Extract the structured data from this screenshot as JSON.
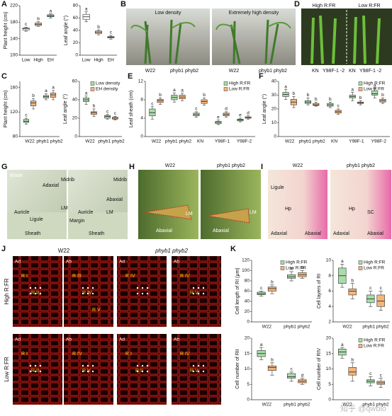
{
  "panels": [
    "A",
    "B",
    "C",
    "D",
    "E",
    "F",
    "G",
    "H",
    "I",
    "J",
    "K"
  ],
  "chart_data": [
    {
      "type": "box",
      "ylabel": "Plant height (cm)",
      "categories": [
        "Low",
        "High",
        "EH"
      ],
      "ylim": [
        100,
        220
      ],
      "yticks": [
        100,
        140,
        180,
        220
      ],
      "series": [
        {
          "colors": [
            "#ffffff",
            "#f5c79a",
            "#9ed9a0"
          ],
          "boxes": [
            [
              158,
              161,
              164,
              166,
              168
            ],
            [
              170,
              172,
              175,
              178,
              181
            ],
            [
              190,
              193,
              195,
              198,
              200
            ]
          ],
          "letters": [
            "c",
            "b",
            "a"
          ]
        }
      ]
    },
    {
      "type": "box",
      "ylabel": "Leaf angle (°)",
      "categories": [
        "Low",
        "High",
        "EH"
      ],
      "ylim": [
        0,
        80
      ],
      "yticks": [
        0,
        20,
        40,
        60,
        80
      ],
      "series": [
        {
          "colors": [
            "#ffffff",
            "#f5c79a",
            "#9ed9a0"
          ],
          "boxes": [
            [
              54,
              58,
              62,
              66,
              70
            ],
            [
              33,
              35,
              37,
              39,
              41
            ],
            [
              26,
              28,
              29,
              30,
              32
            ]
          ],
          "letters": [
            "a",
            "b",
            "c"
          ]
        }
      ]
    },
    {
      "type": "box",
      "ylabel": "Plant height (cm)",
      "categories": [
        "W22",
        "phyb1 phyb2"
      ],
      "ylim": [
        80,
        170
      ],
      "yticks": [
        80,
        120,
        160
      ],
      "series": [
        {
          "name": "Low density",
          "color": "#a8dca8",
          "boxes": [
            [
              100,
              103,
              105,
              108,
              110
            ],
            [
              140,
              143,
              145,
              147,
              150
            ]
          ],
          "letters": [
            "c",
            "a"
          ]
        },
        {
          "name": "EH density",
          "color": "#f5b57a",
          "boxes": [
            [
              125,
              130,
              135,
              138,
              142
            ],
            [
              140,
              144,
              148,
              151,
              155
            ]
          ],
          "letters": [
            "b",
            "a"
          ]
        }
      ]
    },
    {
      "type": "box",
      "ylabel": "Leaf angle (°)",
      "categories": [
        "W22",
        "phyb1 phyb2"
      ],
      "ylim": [
        0,
        60
      ],
      "yticks": [
        0,
        20,
        40,
        60
      ],
      "legend": true,
      "series": [
        {
          "name": "Low density",
          "color": "#a8dca8",
          "boxes": [
            [
              35,
              38,
              40,
              42,
              44
            ],
            [
              19,
              20,
              22,
              23,
              24
            ]
          ],
          "letters": [
            "a",
            "c"
          ]
        },
        {
          "name": "EH density",
          "color": "#f5b57a",
          "boxes": [
            [
              22,
              24,
              26,
              27,
              30
            ],
            [
              18,
              19,
              20,
              21,
              22
            ]
          ],
          "letters": [
            "b",
            "c"
          ]
        }
      ]
    },
    {
      "type": "box",
      "ylabel": "Leaf sheath (cm)",
      "categories": [
        "W22",
        "phyb1 phyb2",
        "KN",
        "Y98F-1",
        "Y98F-2"
      ],
      "ylim": [
        0,
        12
      ],
      "yticks": [
        0,
        4,
        8,
        12
      ],
      "legend": true,
      "series": [
        {
          "name": "High R:FR",
          "color": "#a8dca8",
          "boxes": [
            [
              3.8,
              4.5,
              5.2,
              6,
              6.5
            ],
            [
              7.5,
              8,
              8.5,
              9,
              9.5
            ],
            [
              4.2,
              4.5,
              4.8,
              5.1,
              5.4
            ],
            [
              2.6,
              2.8,
              3.1,
              3.3,
              3.6
            ],
            [
              3.2,
              3.4,
              3.6,
              3.8,
              4
            ]
          ],
          "letters": [
            "c",
            "a",
            "c",
            "e",
            "e"
          ]
        },
        {
          "name": "Low R:FR",
          "color": "#f5b57a",
          "boxes": [
            [
              7,
              7.4,
              7.8,
              8.1,
              8.4
            ],
            [
              7.8,
              8.2,
              8.6,
              9,
              9.4
            ],
            [
              6.8,
              7.2,
              7.6,
              8,
              8.4
            ],
            [
              4.2,
              4.5,
              4.8,
              5.1,
              5.4
            ],
            [
              3.8,
              4,
              4.1,
              4.3,
              4.5
            ]
          ],
          "letters": [
            "b",
            "a",
            "b",
            "d",
            "d"
          ]
        }
      ]
    },
    {
      "type": "box",
      "ylabel": "Leaf angle (°)",
      "categories": [
        "W22",
        "phyb1 phyb2",
        "KN",
        "Y98F-1",
        "Y98F-2"
      ],
      "ylim": [
        0,
        40
      ],
      "yticks": [
        0,
        10,
        20,
        30,
        40
      ],
      "legend": true,
      "series": [
        {
          "name": "High R:FR",
          "color": "#a8dca8",
          "boxes": [
            [
              27,
              29,
              30.5,
              32,
              34
            ],
            [
              23,
              24,
              25,
              26,
              28
            ],
            [
              21,
              22,
              23,
              24,
              25
            ],
            [
              26,
              28,
              29,
              30,
              32
            ],
            [
              28,
              30,
              31,
              33,
              35
            ]
          ],
          "letters": [
            "a",
            "b",
            "b",
            "a",
            "a"
          ]
        },
        {
          "name": "Low R:FR",
          "color": "#f5b57a",
          "boxes": [
            [
              21,
              23,
              25,
              27,
              29
            ],
            [
              22,
              22.5,
              23,
              24,
              25
            ],
            [
              16,
              17,
              18,
              19,
              20
            ],
            [
              23,
              24,
              24.5,
              25,
              26
            ],
            [
              24,
              25,
              26,
              27,
              28
            ]
          ],
          "letters": [
            "b",
            "b",
            "c",
            "b",
            "b"
          ]
        }
      ]
    },
    {
      "type": "box",
      "ylabel": "Cell length of RI (μm)",
      "categories": [
        "W22",
        "phyb1 phyb2"
      ],
      "ylim": [
        0,
        120
      ],
      "yticks": [
        0,
        20,
        40,
        60,
        80,
        100,
        120
      ],
      "legend": true,
      "series": [
        {
          "name": "High R:FR",
          "color": "#a8dca8",
          "boxes": [
            [
              50,
              53,
              55,
              58,
              60
            ],
            [
              80,
              85,
              88,
              92,
              98
            ]
          ],
          "letters": [
            "c",
            "a"
          ]
        },
        {
          "name": "Low R:FR",
          "color": "#f5b57a",
          "boxes": [
            [
              55,
              60,
              65,
              68,
              72
            ],
            [
              85,
              88,
              92,
              96,
              100
            ]
          ],
          "letters": [
            "b",
            "a"
          ]
        }
      ]
    },
    {
      "type": "box",
      "ylabel": "Cell layers of RI",
      "categories": [
        "W22",
        "phyb1 phyb2"
      ],
      "ylim": [
        2,
        10
      ],
      "yticks": [
        2,
        4,
        6,
        8,
        10
      ],
      "legend": true,
      "series": [
        {
          "name": "High R:FR",
          "color": "#a8dca8",
          "boxes": [
            [
              6.5,
              7,
              8,
              9,
              9.5
            ],
            [
              4,
              4.5,
              5,
              5.5,
              6
            ]
          ],
          "letters": [
            "a",
            "c"
          ]
        },
        {
          "name": "Low R:FR",
          "color": "#f5b57a",
          "boxes": [
            [
              5,
              5.5,
              6,
              6.3,
              7
            ],
            [
              3.5,
              4,
              4.7,
              5.5,
              6
            ]
          ],
          "letters": [
            "b",
            "c"
          ]
        }
      ]
    },
    {
      "type": "box",
      "ylabel": "Cell number of RII",
      "categories": [
        "W22",
        "phyb1 phyb2"
      ],
      "ylim": [
        0,
        20
      ],
      "yticks": [
        0,
        5,
        10,
        15,
        20
      ],
      "series": [
        {
          "name": "High R:FR",
          "color": "#a8dca8",
          "boxes": [
            [
              13,
              14,
              15,
              16,
              17
            ],
            [
              6,
              7,
              7.5,
              8.5,
              9
            ]
          ],
          "letters": [
            "a",
            "c"
          ]
        },
        {
          "name": "Low R:FR",
          "color": "#f5b57a",
          "boxes": [
            [
              8,
              9.5,
              10.5,
              11,
              12
            ],
            [
              5,
              5.5,
              6,
              6.5,
              7
            ]
          ],
          "letters": [
            "b",
            "d"
          ]
        }
      ]
    },
    {
      "type": "box",
      "ylabel": "Cell number of RIV",
      "categories": [
        "W22",
        "phyb1 phyb2"
      ],
      "ylim": [
        0,
        20
      ],
      "yticks": [
        0,
        5,
        10,
        15,
        20
      ],
      "legend": true,
      "series": [
        {
          "name": "High R:FR",
          "color": "#a8dca8",
          "boxes": [
            [
              13.5,
              14.5,
              15.5,
              16.5,
              17
            ],
            [
              4.5,
              5.5,
              6,
              6.5,
              7.5
            ]
          ],
          "letters": [
            "a",
            "c"
          ]
        },
        {
          "name": "Low R:FR",
          "color": "#f5b57a",
          "boxes": [
            [
              6,
              8,
              9,
              10.5,
              12
            ],
            [
              4,
              5,
              5.5,
              6,
              7
            ]
          ],
          "letters": [
            "b",
            "c"
          ]
        }
      ]
    }
  ],
  "photos": {
    "B": [
      "Low density",
      "Extremely high density",
      "W22",
      "phyb1 phyb2",
      "W22",
      "phyb1 phyb2"
    ],
    "D": [
      "High R:FR",
      "Low R:FR",
      "KN",
      "Y98F-1 -2",
      "KN",
      "Y98F-1 -2"
    ],
    "G": [
      "Blade",
      "Adaxial",
      "Midrib",
      "Auricle",
      "Ligule",
      "LM",
      "Sheath",
      "Midrib",
      "Abaxial",
      "Margin",
      "Auricle",
      "LM",
      "Sheath"
    ],
    "H": [
      "W22",
      "phyb1 phyb2",
      "LM",
      "Abaxial",
      "LM",
      "Abaxial"
    ],
    "I": [
      "W22",
      "phyb1 phyb2",
      "Ligule",
      "Hp",
      "Adaxial",
      "Abaxial",
      "Hp",
      "SC",
      "Adaxial",
      "Abaxial"
    ],
    "J": {
      "columns": [
        "W22",
        "phyb1 phyb2"
      ],
      "rows": [
        "High R:FR",
        "Low R:FR"
      ],
      "tiles": [
        [
          "Ad",
          "R I",
          "R II"
        ],
        [
          "Ab",
          "R III",
          "R IV",
          "R V"
        ],
        [
          "Ad",
          "R IV"
        ],
        [
          "Ab",
          "R IV",
          "R V"
        ],
        [
          "Ad",
          "R I",
          "R II"
        ],
        [
          "Ab",
          "R IV",
          "R V"
        ],
        [
          "Ad",
          "R I",
          "R II"
        ],
        [
          "Ab",
          "R IV",
          "R V"
        ]
      ]
    }
  },
  "watermark": "知乎 @qwbio"
}
